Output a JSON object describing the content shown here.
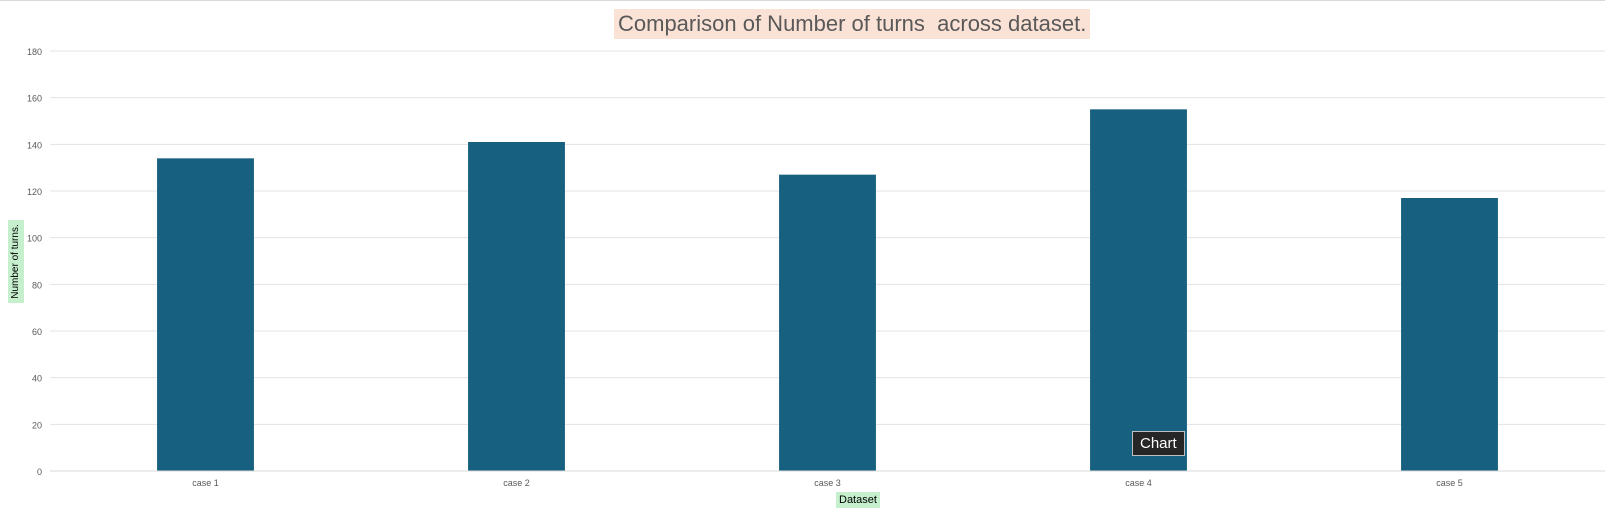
{
  "chart_data": {
    "type": "bar",
    "title": "Comparison of Number of turns  across dataset.",
    "xlabel": "Dataset",
    "ylabel": "Number of turns.",
    "categories": [
      "case 1",
      "case 2",
      "case 3",
      "case 4",
      "case 5"
    ],
    "values": [
      134,
      141,
      127,
      155,
      117
    ],
    "ylim": [
      0,
      180
    ],
    "yticks": [
      "0",
      "20",
      "40",
      "60",
      "80",
      "100",
      "120",
      "140",
      "160",
      "180"
    ],
    "grid": true,
    "legend": "none",
    "bar_color": "#17607f",
    "gridline_color": "#e3e3e3"
  },
  "tooltip": {
    "text": "Chart"
  }
}
